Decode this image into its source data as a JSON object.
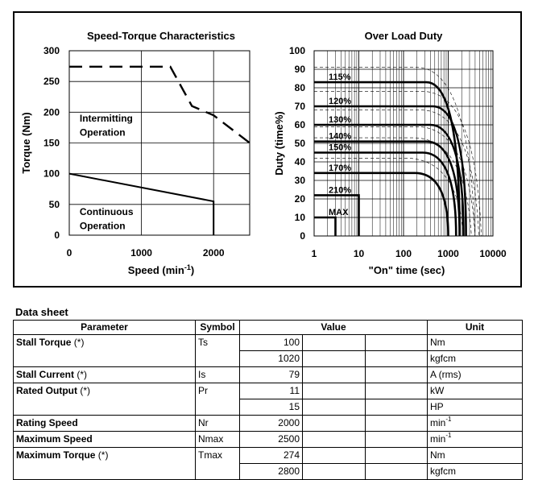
{
  "chart_data": [
    {
      "type": "line",
      "title": "Speed-Torque Characteristics",
      "xlabel": "Speed (min",
      "xlabel_sup": "-1",
      "xlabel_close": ")",
      "ylabel": "Torque (Nm)",
      "xlim": [
        0,
        2500
      ],
      "ylim": [
        0,
        300
      ],
      "x_ticks": [
        "0",
        "1000",
        "2000"
      ],
      "y_ticks": [
        "0",
        "50",
        "100",
        "150",
        "200",
        "250",
        "300"
      ],
      "grid": true,
      "series": [
        {
          "style": "dashed",
          "x": [
            0,
            1400,
            1700,
            2000,
            2500
          ],
          "y": [
            274,
            274,
            210,
            195,
            150
          ]
        },
        {
          "style": "solid",
          "x": [
            0,
            2000,
            2000
          ],
          "y": [
            100,
            55,
            0
          ]
        }
      ],
      "annotations": [
        {
          "text": "Intermitting",
          "x": 300,
          "y": 190
        },
        {
          "text": "Operation",
          "x": 300,
          "y": 167
        },
        {
          "text": "Continuous",
          "x": 300,
          "y": 38
        },
        {
          "text": "Operation",
          "x": 300,
          "y": 15
        }
      ]
    },
    {
      "type": "line",
      "title": "Over Load Duty",
      "xlabel": "\"On\" time (sec)",
      "ylabel": "Duty (time%)",
      "x_scale": "log",
      "xlim": [
        1,
        10000
      ],
      "ylim": [
        0,
        100
      ],
      "x_ticks": [
        "1",
        "10",
        "100",
        "1000",
        "10000"
      ],
      "y_ticks": [
        "0",
        "10",
        "20",
        "30",
        "40",
        "50",
        "60",
        "70",
        "80",
        "90",
        "100"
      ],
      "grid": true,
      "series": [
        {
          "name": "115%",
          "duty": 83,
          "end_sec": 1800
        },
        {
          "name": "120%",
          "duty": 70,
          "end_sec": 2500
        },
        {
          "name": "130%",
          "duty": 60,
          "end_sec": 2200
        },
        {
          "name": "140%",
          "duty": 51,
          "end_sec": 1800
        },
        {
          "name": "150%",
          "duty": 45,
          "end_sec": 1500
        },
        {
          "name": "170%",
          "duty": 34,
          "end_sec": 1000
        },
        {
          "name": "210%",
          "duty": 22,
          "end_sec": 10
        },
        {
          "name": "MAX",
          "duty": 10,
          "end_sec": 3
        }
      ]
    }
  ],
  "datasheet": {
    "title": "Data sheet",
    "headers": [
      "Parameter",
      "Symbol",
      "Value",
      "Unit"
    ],
    "rows": [
      {
        "param": "Stall Torque",
        "note": "(*)",
        "symbol": "Ts",
        "values": [
          "100",
          "1020"
        ],
        "units": [
          "Nm",
          "kgfcm"
        ]
      },
      {
        "param": "Stall Current",
        "note": "(*)",
        "symbol": "Is",
        "values": [
          "79"
        ],
        "units": [
          "A (rms)"
        ]
      },
      {
        "param": "Rated Output",
        "note": "(*)",
        "symbol": "Pr",
        "values": [
          "11",
          "15"
        ],
        "units": [
          "kW",
          "HP"
        ]
      },
      {
        "param": "Rating Speed",
        "note": "",
        "symbol": "Nr",
        "values": [
          "2000"
        ],
        "units": [
          "min"
        ],
        "unit_sup": "-1"
      },
      {
        "param": "Maximum Speed",
        "note": "",
        "symbol": "Nmax",
        "values": [
          "2500"
        ],
        "units": [
          "min"
        ],
        "unit_sup": "-1"
      },
      {
        "param": "Maximum Torque",
        "note": "(*)",
        "symbol": "Tmax",
        "values": [
          "274",
          "2800"
        ],
        "units": [
          "Nm",
          "kgfcm"
        ]
      }
    ]
  }
}
